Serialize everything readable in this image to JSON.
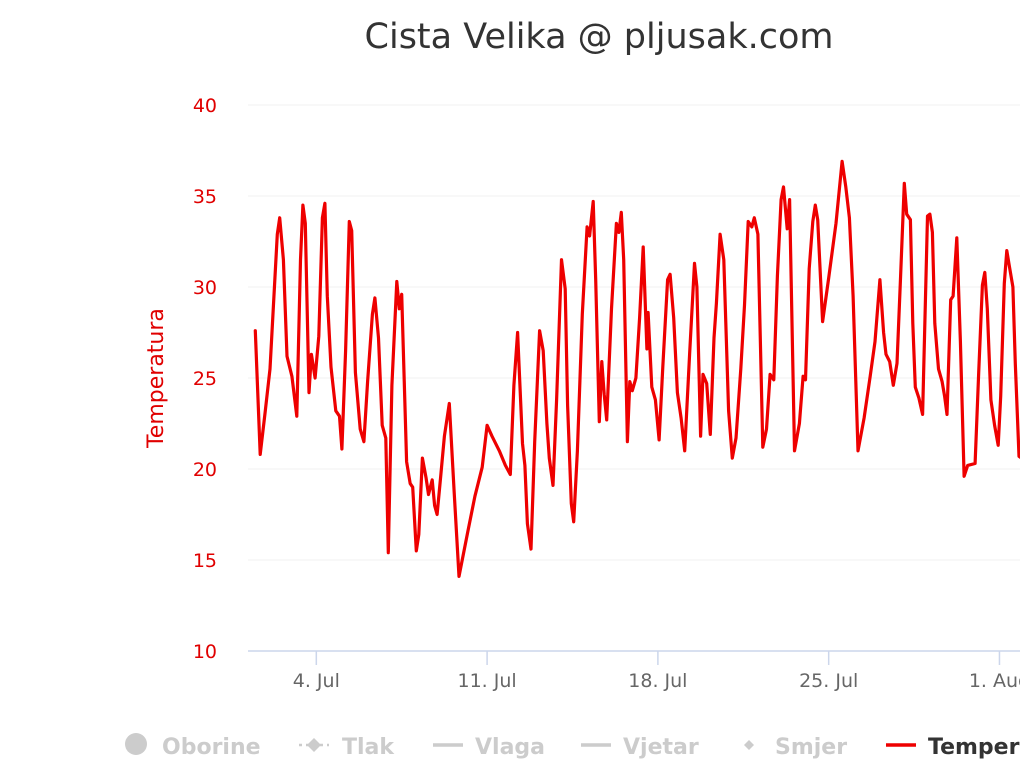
{
  "chart_data": {
    "type": "line",
    "title": "Cista Velika @ pljusak.com",
    "ylabel": "Temperatura",
    "ylim": [
      10,
      40
    ],
    "yticks": [
      "10",
      "15",
      "20",
      "25",
      "30",
      "35",
      "40"
    ],
    "xlim": [
      1.2,
      32.35
    ],
    "xtick_values": [
      4,
      11,
      18,
      25,
      32
    ],
    "xtick_labels": [
      "4. Jul",
      "11. Jul",
      "18. Jul",
      "25. Jul",
      "1. Aug"
    ],
    "colors": {
      "series": "#ee0000",
      "axis_labels": "#e00000",
      "legend_hidden": "#cccccc",
      "legend_active": "#333333"
    },
    "legend": [
      {
        "name": "Oborine",
        "symbol": "circle",
        "visible": false
      },
      {
        "name": "Tlak",
        "symbol": "dash-diamond",
        "visible": false
      },
      {
        "name": "Vlaga",
        "symbol": "line",
        "visible": false
      },
      {
        "name": "Vjetar",
        "symbol": "line",
        "visible": false
      },
      {
        "name": "Smjer",
        "symbol": "diamond",
        "visible": false
      },
      {
        "name": "Temperatura",
        "symbol": "line",
        "visible": true
      }
    ],
    "series": [
      {
        "name": "Temperatura",
        "points": [
          [
            1.5,
            27.6
          ],
          [
            1.7,
            20.8
          ],
          [
            1.9,
            23.1
          ],
          [
            2.1,
            25.5
          ],
          [
            2.4,
            32.9
          ],
          [
            2.5,
            33.8
          ],
          [
            2.65,
            31.5
          ],
          [
            2.8,
            26.2
          ],
          [
            3.0,
            25.1
          ],
          [
            3.2,
            22.9
          ],
          [
            3.35,
            31.5
          ],
          [
            3.45,
            34.5
          ],
          [
            3.55,
            33.5
          ],
          [
            3.7,
            24.2
          ],
          [
            3.8,
            26.3
          ],
          [
            3.95,
            25.0
          ],
          [
            4.1,
            27.3
          ],
          [
            4.25,
            33.8
          ],
          [
            4.35,
            34.6
          ],
          [
            4.45,
            29.5
          ],
          [
            4.6,
            25.6
          ],
          [
            4.8,
            23.2
          ],
          [
            4.95,
            22.9
          ],
          [
            5.05,
            21.1
          ],
          [
            5.2,
            26.5
          ],
          [
            5.35,
            33.6
          ],
          [
            5.45,
            33.1
          ],
          [
            5.6,
            25.3
          ],
          [
            5.8,
            22.2
          ],
          [
            5.95,
            21.5
          ],
          [
            6.1,
            24.8
          ],
          [
            6.3,
            28.5
          ],
          [
            6.4,
            29.4
          ],
          [
            6.55,
            27.2
          ],
          [
            6.7,
            22.4
          ],
          [
            6.85,
            21.7
          ],
          [
            6.95,
            15.4
          ],
          [
            7.1,
            24.6
          ],
          [
            7.3,
            30.3
          ],
          [
            7.4,
            28.8
          ],
          [
            7.5,
            29.6
          ],
          [
            7.7,
            20.4
          ],
          [
            7.85,
            19.2
          ],
          [
            7.95,
            19.0
          ],
          [
            8.1,
            15.5
          ],
          [
            8.2,
            16.4
          ],
          [
            8.35,
            20.6
          ],
          [
            8.5,
            19.5
          ],
          [
            8.6,
            18.6
          ],
          [
            8.75,
            19.4
          ],
          [
            8.85,
            18.0
          ],
          [
            8.95,
            17.5
          ],
          [
            9.1,
            19.6
          ],
          [
            9.25,
            21.8
          ],
          [
            9.45,
            23.6
          ],
          [
            9.65,
            18.7
          ],
          [
            9.85,
            14.1
          ],
          [
            10.2,
            16.5
          ],
          [
            10.5,
            18.5
          ],
          [
            10.8,
            20.1
          ],
          [
            11.0,
            22.4
          ],
          [
            11.2,
            21.8
          ],
          [
            11.5,
            21.0
          ],
          [
            11.75,
            20.2
          ],
          [
            11.95,
            19.7
          ],
          [
            12.1,
            24.6
          ],
          [
            12.25,
            27.5
          ],
          [
            12.45,
            21.4
          ],
          [
            12.55,
            20.2
          ],
          [
            12.65,
            17.0
          ],
          [
            12.8,
            15.6
          ],
          [
            12.95,
            21.5
          ],
          [
            13.15,
            27.6
          ],
          [
            13.3,
            26.5
          ],
          [
            13.45,
            22.5
          ],
          [
            13.55,
            20.6
          ],
          [
            13.7,
            19.1
          ],
          [
            13.85,
            23.8
          ],
          [
            14.05,
            31.5
          ],
          [
            14.2,
            29.9
          ],
          [
            14.3,
            23.5
          ],
          [
            14.45,
            18.1
          ],
          [
            14.55,
            17.1
          ],
          [
            14.7,
            21.0
          ],
          [
            14.9,
            28.5
          ],
          [
            15.1,
            33.3
          ],
          [
            15.2,
            32.8
          ],
          [
            15.35,
            34.7
          ],
          [
            15.45,
            30.4
          ],
          [
            15.6,
            22.6
          ],
          [
            15.7,
            25.9
          ],
          [
            15.8,
            24.1
          ],
          [
            15.9,
            22.7
          ],
          [
            16.1,
            28.8
          ],
          [
            16.3,
            33.5
          ],
          [
            16.4,
            33.0
          ],
          [
            16.5,
            34.1
          ],
          [
            16.6,
            31.5
          ],
          [
            16.75,
            21.5
          ],
          [
            16.85,
            24.8
          ],
          [
            16.95,
            24.3
          ],
          [
            17.1,
            25.0
          ],
          [
            17.25,
            28.3
          ],
          [
            17.4,
            32.2
          ],
          [
            17.55,
            26.6
          ],
          [
            17.6,
            28.6
          ],
          [
            17.75,
            24.5
          ],
          [
            17.9,
            23.8
          ],
          [
            18.05,
            21.6
          ],
          [
            18.2,
            25.6
          ],
          [
            18.4,
            30.4
          ],
          [
            18.5,
            30.7
          ],
          [
            18.65,
            28.3
          ],
          [
            18.8,
            24.2
          ],
          [
            18.95,
            22.8
          ],
          [
            19.1,
            21.0
          ],
          [
            19.3,
            26.3
          ],
          [
            19.5,
            31.3
          ],
          [
            19.6,
            30.0
          ],
          [
            19.75,
            21.8
          ],
          [
            19.85,
            25.2
          ],
          [
            20.0,
            24.7
          ],
          [
            20.15,
            21.9
          ],
          [
            20.3,
            27.2
          ],
          [
            20.4,
            29.1
          ],
          [
            20.55,
            32.9
          ],
          [
            20.7,
            31.5
          ],
          [
            20.9,
            23.2
          ],
          [
            21.05,
            20.6
          ],
          [
            21.2,
            21.7
          ],
          [
            21.4,
            25.5
          ],
          [
            21.55,
            29.0
          ],
          [
            21.7,
            33.6
          ],
          [
            21.85,
            33.3
          ],
          [
            21.95,
            33.8
          ],
          [
            22.1,
            32.9
          ],
          [
            22.3,
            21.2
          ],
          [
            22.45,
            22.2
          ],
          [
            22.6,
            25.2
          ],
          [
            22.75,
            24.9
          ],
          [
            22.9,
            30.6
          ],
          [
            23.05,
            34.8
          ],
          [
            23.15,
            35.5
          ],
          [
            23.3,
            33.2
          ],
          [
            23.4,
            34.8
          ],
          [
            23.6,
            21.0
          ],
          [
            23.8,
            22.5
          ],
          [
            23.95,
            25.1
          ],
          [
            24.05,
            24.9
          ],
          [
            24.2,
            31.0
          ],
          [
            24.35,
            33.6
          ],
          [
            24.45,
            34.5
          ],
          [
            24.55,
            33.7
          ],
          [
            24.75,
            28.1
          ],
          [
            25.0,
            30.5
          ],
          [
            25.3,
            33.5
          ],
          [
            25.55,
            36.9
          ],
          [
            25.7,
            35.5
          ],
          [
            25.85,
            33.8
          ],
          [
            26.0,
            29.5
          ],
          [
            26.2,
            21.0
          ],
          [
            26.45,
            22.8
          ],
          [
            26.7,
            25.1
          ],
          [
            26.9,
            27.0
          ],
          [
            27.1,
            30.4
          ],
          [
            27.25,
            27.5
          ],
          [
            27.35,
            26.3
          ],
          [
            27.5,
            25.9
          ],
          [
            27.65,
            24.6
          ],
          [
            27.8,
            25.8
          ],
          [
            27.95,
            30.6
          ],
          [
            28.1,
            35.7
          ],
          [
            28.2,
            34.0
          ],
          [
            28.35,
            33.7
          ],
          [
            28.45,
            28.0
          ],
          [
            28.55,
            24.5
          ],
          [
            28.7,
            23.9
          ],
          [
            28.85,
            23.0
          ],
          [
            29.05,
            33.9
          ],
          [
            29.15,
            34.0
          ],
          [
            29.25,
            33.0
          ],
          [
            29.35,
            28.0
          ],
          [
            29.5,
            25.5
          ],
          [
            29.65,
            24.8
          ],
          [
            29.75,
            24.0
          ],
          [
            29.85,
            23.0
          ],
          [
            30.0,
            29.3
          ],
          [
            30.1,
            29.5
          ],
          [
            30.25,
            32.7
          ],
          [
            30.4,
            27.0
          ],
          [
            30.55,
            19.6
          ],
          [
            30.7,
            20.2
          ],
          [
            31.0,
            20.3
          ],
          [
            31.15,
            25.3
          ],
          [
            31.3,
            30.1
          ],
          [
            31.4,
            30.8
          ],
          [
            31.5,
            28.8
          ],
          [
            31.65,
            23.8
          ],
          [
            31.8,
            22.4
          ],
          [
            31.95,
            21.3
          ],
          [
            32.05,
            24.0
          ],
          [
            32.2,
            30.2
          ],
          [
            32.3,
            32.0
          ],
          [
            32.4,
            31.2
          ],
          [
            32.55,
            30.0
          ],
          [
            32.65,
            25.8
          ],
          [
            32.8,
            20.7
          ],
          [
            33.0,
            20.5
          ],
          [
            33.15,
            20.3
          ],
          [
            33.3,
            26.3
          ],
          [
            33.4,
            20.3
          ],
          [
            33.5,
            29.3
          ],
          [
            33.6,
            28.8
          ],
          [
            33.75,
            29.4
          ],
          [
            33.85,
            21.0
          ],
          [
            34.1,
            20.9
          ],
          [
            34.25,
            24.0
          ],
          [
            34.45,
            28.3
          ],
          [
            34.55,
            27.5
          ],
          [
            34.65,
            26.3
          ]
        ]
      }
    ]
  }
}
